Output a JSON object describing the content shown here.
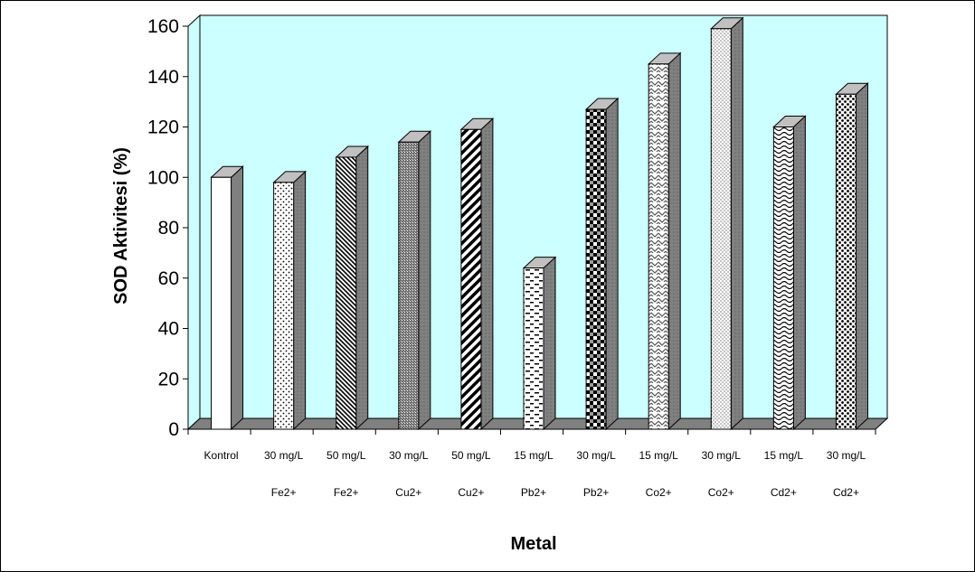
{
  "chart_data": {
    "type": "bar",
    "title": "",
    "xlabel": "Metal",
    "ylabel": "SOD Aktivitesi (%)",
    "ylim": [
      0,
      160
    ],
    "yticks": [
      "0",
      "20",
      "40",
      "60",
      "80",
      "100",
      "120",
      "140",
      "160"
    ],
    "grid": false,
    "categories": [
      [
        "Kontrol",
        ""
      ],
      [
        "30 mg/L",
        "Fe2+"
      ],
      [
        "50 mg/L",
        "Fe2+"
      ],
      [
        "30 mg/L",
        "Cu2+"
      ],
      [
        "50 mg/L",
        "Cu2+"
      ],
      [
        "15 mg/L",
        "Pb2+"
      ],
      [
        "30 mg/L",
        "Pb2+"
      ],
      [
        "15 mg/L",
        "Co2+"
      ],
      [
        "30 mg/L",
        "Co2+"
      ],
      [
        "15 mg/L",
        "Cd2+"
      ],
      [
        "30 mg/L",
        "Cd2+"
      ]
    ],
    "values": [
      100,
      98,
      108,
      114,
      119,
      64,
      127,
      145,
      159,
      120,
      133
    ],
    "colors": {
      "plot_background": "#ccffff",
      "floor": "#808080",
      "bar_side": "#808080",
      "bar_top": "#c0c0c0",
      "bar_front": "#ffffff"
    },
    "patterns": [
      "solid",
      "sparse-dots",
      "diag-right",
      "cross-dense",
      "diag-wide",
      "dashes",
      "checker",
      "zigzag",
      "fine-dots",
      "wave",
      "big-dots"
    ]
  }
}
